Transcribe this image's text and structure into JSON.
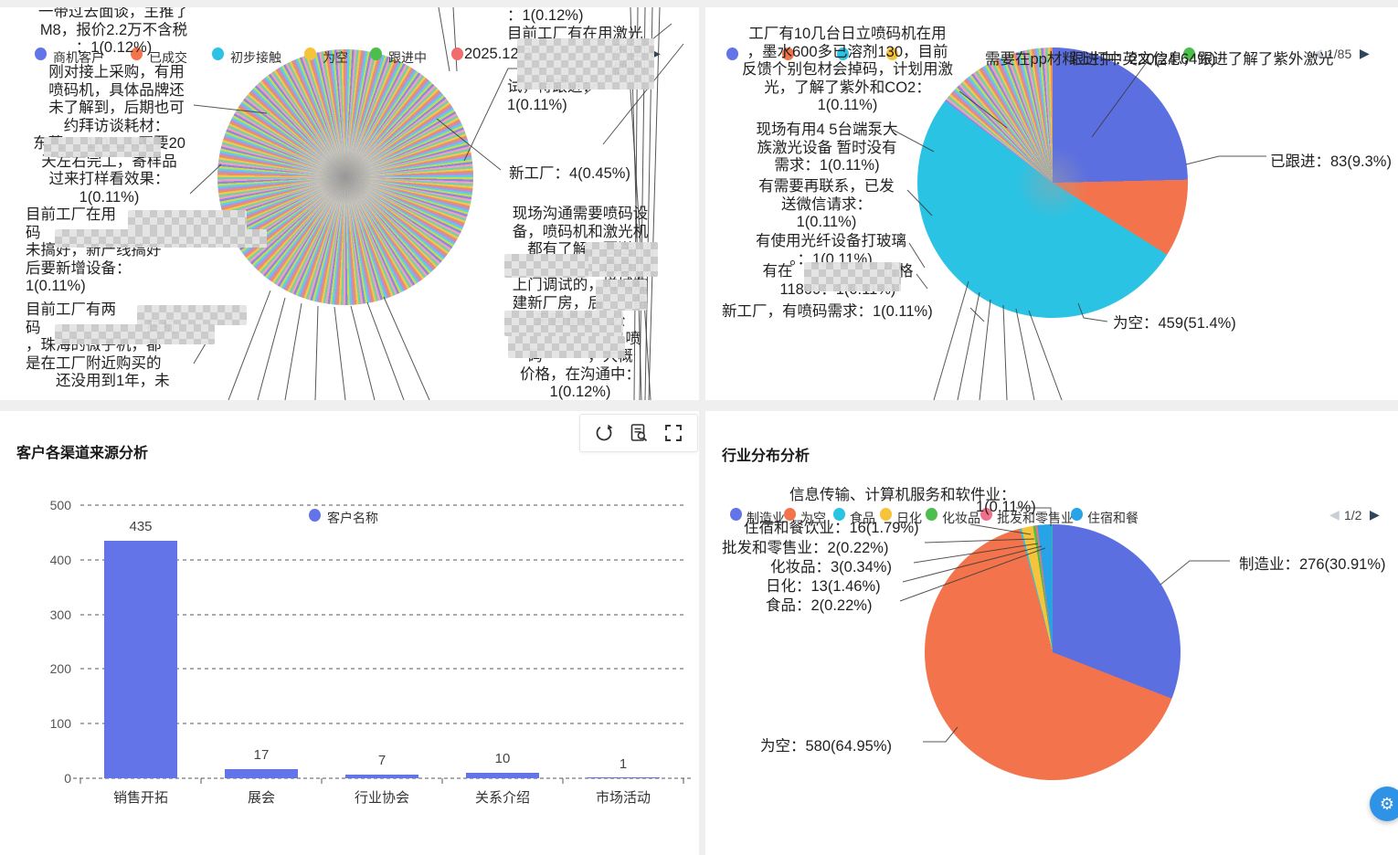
{
  "fab": {
    "gear_glyph": "⚙"
  },
  "tl": {
    "legend": [
      {
        "label": "商机客户",
        "color": "#6274e7"
      },
      {
        "label": "已成交",
        "color": "#f3744c"
      },
      {
        "label": "初步接触",
        "color": "#2bc3e4"
      },
      {
        "label": "为空",
        "color": "#f6c33a"
      },
      {
        "label": "跟进中",
        "color": "#4cbe4c"
      },
      {
        "label": "",
        "color": "#f16c6c"
      }
    ],
    "legend_next": "▶",
    "a1": "一带过去面谈，主推了\nM8，报价2.2万不含税\n：1(0.12%)",
    "a2": "刚对接上采购，有用\n喷码机，具体品牌还\n未了解到，后期也可\n约拜访谈耗材：\n1(0.11%)",
    "a3": "东莞　　　　　不要20\n天左右完工，寄样品\n过来打样看效果：\n1(0.11%)",
    "a4": "目前工厂在用\n码\n未搞好，新产线搞好\n后要新增设备：\n1(0.11%)",
    "a5": "目前工厂有两\n码　　　　　　　码机\n，珠海的微子机，都\n是在工厂附近购买的\n　　还没用到1年，未",
    "a6": "：1(0.12%)\n目前工厂有在用激光\n　　　　　　　不过\n　　　　　　　做测\n试，待跟进：\n1(0.11%)",
    "a7": "2025.12.2",
    "a8": "新工厂：4(0.45%)",
    "a9": "现场沟通需要喷码设\n备，喷码机和激光机\n都有了解，要送　　\n　　　　，需要\n上门调试的，增城在\n建新厂房，后　　备\n采购量多，公　　　\n　　　　　　　喷\n码　　　，大概\n价格，在沟通中：\n1(0.12%)"
  },
  "tr": {
    "legend_colors": [
      "#6274e7",
      "#f3744c",
      "#2bc3e4",
      "#f6c33a",
      "#4cbe4c"
    ],
    "pagination": {
      "prev": "◀",
      "page": "1/85",
      "next": "▶"
    },
    "b1": "工厂有10几台日立喷码机在用\n，墨水600多已溶剂130，目前\n反馈个别包材会掉码，计划用激\n光，了解了紫外和CO2：\n1(0.11%)",
    "b2": "现场有用4 5台端泵大\n族激光设备 暂时没有\n需求：1(0.11%)",
    "b3": "有需要再联系，已发\n送微信请求：\n1(0.11%)",
    "b4": "有使用光纤设备打玻璃\n。：1(0.11%)",
    "b5": "有在　　　　　　价格\n11800：1(0.11%)",
    "b6": "新工厂，有喷码需求：1(0.11%)",
    "b7": "需要在pp材料上打中英文信息，跟进了解了紫外激光",
    "b8": "跟进中：220(24.64%)",
    "b9": "已跟进：83(9.3%)",
    "b10": "为空：459(51.4%)"
  },
  "bl": {
    "title": "客户各渠道来源分析",
    "legend_label": "客户名称",
    "legend_color": "#6274e7",
    "y_ticks": [
      "500",
      "400",
      "300",
      "200",
      "100",
      "0"
    ],
    "categories": [
      "销售开拓",
      "展会",
      "行业协会",
      "关系介绍",
      "市场活动"
    ],
    "value_labels": [
      "435",
      "17",
      "7",
      "10",
      "1"
    ]
  },
  "br": {
    "title": "行业分布分析",
    "legend": [
      {
        "label": "制造业",
        "color": "#6274e7"
      },
      {
        "label": "为空",
        "color": "#f3744c"
      },
      {
        "label": "食品",
        "color": "#2bc3e4"
      },
      {
        "label": "日化",
        "color": "#f6c33a"
      },
      {
        "label": "化妆品",
        "color": "#4cbe4c"
      },
      {
        "label": "批发和零售业",
        "color": "#f0708a"
      },
      {
        "label": "住宿和餐",
        "color": "#29a3e8"
      }
    ],
    "pagination": {
      "prev": "◀",
      "page": "1/2",
      "next": "▶"
    },
    "c1a": "信息传输、计算机服务和软件业：",
    "c1b": "1(0.11%)",
    "c2": "住宿和餐饮业：16(1.79%)",
    "c3": "批发和零售业：2(0.22%)",
    "c4": "化妆品：3(0.34%)",
    "c5": "日化：13(1.46%)",
    "c6": "食品：2(0.22%)",
    "c7": "制造业：276(30.91%)",
    "c8": "为空：580(64.95%)"
  },
  "chart_data": [
    {
      "type": "pie",
      "title": "",
      "legend": [
        "商机客户",
        "已成交",
        "初步接触",
        "为空",
        "跟进中"
      ],
      "legend_position": "top",
      "slices": [
        {
          "name": "一带过去面谈，主推了M8，报价2.2万不含税",
          "value": 1,
          "pct": 0.12
        },
        {
          "name": "刚对接上采购，有用喷码机，具体品牌还未了解到，后期也可约拜访谈耗材",
          "value": 1,
          "pct": 0.11
        },
        {
          "name": "东莞…不要20天左右完工，寄样品过来打样看效果",
          "value": 1,
          "pct": 0.11
        },
        {
          "name": "目前工厂在用…未搞好，新产线搞好后要新增设备",
          "value": 1,
          "pct": 0.11
        },
        {
          "name": "目前工厂有两…码机，珠海的微子机，都是在工厂附近购买的还没用到1年",
          "value": 1,
          "pct": 0.11
        },
        {
          "name": "目前工厂有在用激光…做测试，待跟进",
          "value": 1,
          "pct": 0.11
        },
        {
          "name": "新工厂",
          "value": 4,
          "pct": 0.45
        },
        {
          "name": "现场沟通需要喷码设备，喷码机和激光机都有了解，要送…上门调试的，增城在建新厂房…大概价格，在沟通中",
          "value": 1,
          "pct": 0.12
        }
      ],
      "note": "starburst pie of many ~0.11% slices"
    },
    {
      "type": "pie",
      "title": "",
      "pagination": "1/85",
      "slices": [
        {
          "name": "跟进中",
          "value": 220,
          "pct": 24.64,
          "color": "#5b6fe0"
        },
        {
          "name": "已跟进",
          "value": 83,
          "pct": 9.3,
          "color": "#f3744c"
        },
        {
          "name": "为空",
          "value": 459,
          "pct": 51.4,
          "color": "#2bc3e4"
        },
        {
          "name": "工厂有10几台日立喷码机在用，墨水600多已溶剂130，目前反馈个别包材会掉码，计划用激光，了解了紫外和CO2",
          "value": 1,
          "pct": 0.11
        },
        {
          "name": "现场有用4 5台端泵大族激光设备 暂时没有需求",
          "value": 1,
          "pct": 0.11
        },
        {
          "name": "有需要再联系，已发送微信请求",
          "value": 1,
          "pct": 0.11
        },
        {
          "name": "有使用光纤设备打玻璃。",
          "value": 1,
          "pct": 0.11
        },
        {
          "name": "有在…价格11800",
          "value": 1,
          "pct": 0.11
        },
        {
          "name": "新工厂，有喷码需求",
          "value": 1,
          "pct": 0.11
        },
        {
          "name": "需要在pp材料上打中英文信息，跟进了解了紫外激光",
          "value": 1,
          "pct": 0.11
        }
      ]
    },
    {
      "type": "bar",
      "title": "客户各渠道来源分析",
      "series_name": "客户名称",
      "categories": [
        "销售开拓",
        "展会",
        "行业协会",
        "关系介绍",
        "市场活动"
      ],
      "values": [
        435,
        17,
        7,
        10,
        1
      ],
      "ylim": [
        0,
        500
      ],
      "y_ticks": [
        0,
        100,
        200,
        300,
        400,
        500
      ],
      "grid": true,
      "bar_color": "#6274e7"
    },
    {
      "type": "pie",
      "title": "行业分布分析",
      "pagination": "1/2",
      "slices": [
        {
          "name": "制造业",
          "value": 276,
          "pct": 30.91,
          "color": "#5b6fe0"
        },
        {
          "name": "为空",
          "value": 580,
          "pct": 64.95,
          "color": "#f3744c"
        },
        {
          "name": "食品",
          "value": 2,
          "pct": 0.22,
          "color": "#2bc3e4"
        },
        {
          "name": "日化",
          "value": 13,
          "pct": 1.46,
          "color": "#f6c33a"
        },
        {
          "name": "化妆品",
          "value": 3,
          "pct": 0.34,
          "color": "#4cbe4c"
        },
        {
          "name": "批发和零售业",
          "value": 2,
          "pct": 0.22,
          "color": "#f0708a"
        },
        {
          "name": "住宿和餐饮业",
          "value": 16,
          "pct": 1.79,
          "color": "#29a3e8"
        },
        {
          "name": "信息传输、计算机服务和软件业",
          "value": 1,
          "pct": 0.11,
          "color": "#39b39b"
        }
      ]
    }
  ]
}
